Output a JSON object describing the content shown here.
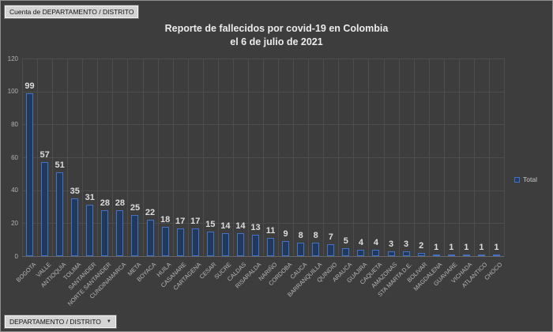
{
  "window": {
    "background": "#3d3d3d",
    "border_color": "#8f8f8f"
  },
  "pivot_value_button": {
    "label": "Cuenta de DEPARTAMENTO / DISTRITO"
  },
  "axis_field_button": {
    "label": "DEPARTAMENTO / DISTRITO",
    "dropdown_icon": "▼"
  },
  "legend": {
    "label": "Total",
    "marker_border_color": "#4472c4"
  },
  "chart_data": {
    "type": "bar",
    "title": "Reporte de fallecidos por covid-19 en Colombia",
    "subtitle": "el 6 de julio de 2021",
    "series_name": "Total",
    "categories": [
      "BOGOTA",
      "VALLE",
      "ANTIOQUIA",
      "TOLIMA",
      "SANTANDER",
      "NORTE SANTANDER",
      "CUNDINAMARCA",
      "META",
      "BOYACA",
      "HUILA",
      "CASANARE",
      "CARTAGENA",
      "CESAR",
      "SUCRE",
      "CALDAS",
      "RISARALDA",
      "NARIÑO",
      "CORDOBA",
      "CAUCA",
      "BARRANQUILLA",
      "QUINDIO",
      "ARAUCA",
      "GUAJIRA",
      "CAQUETA",
      "AMAZONAS",
      "STA MARTA D.E.",
      "BOLIVAR",
      "MAGDALENA",
      "GUAVIARE",
      "VICHADA",
      "ATLANTICO",
      "CHOCO"
    ],
    "values": [
      99,
      57,
      51,
      35,
      31,
      28,
      28,
      25,
      22,
      18,
      17,
      17,
      15,
      14,
      14,
      13,
      11,
      9,
      8,
      8,
      7,
      5,
      4,
      4,
      3,
      3,
      2,
      1,
      1,
      1,
      1,
      1
    ],
    "ylim": [
      0,
      120
    ],
    "yticks": [
      0,
      20,
      40,
      60,
      80,
      100,
      120
    ],
    "grid": "horizontal-and-vertical",
    "data_labels": true,
    "bar_fill_color": "#20395c",
    "bar_border_color": "#4472c4",
    "legend_position": "right"
  }
}
